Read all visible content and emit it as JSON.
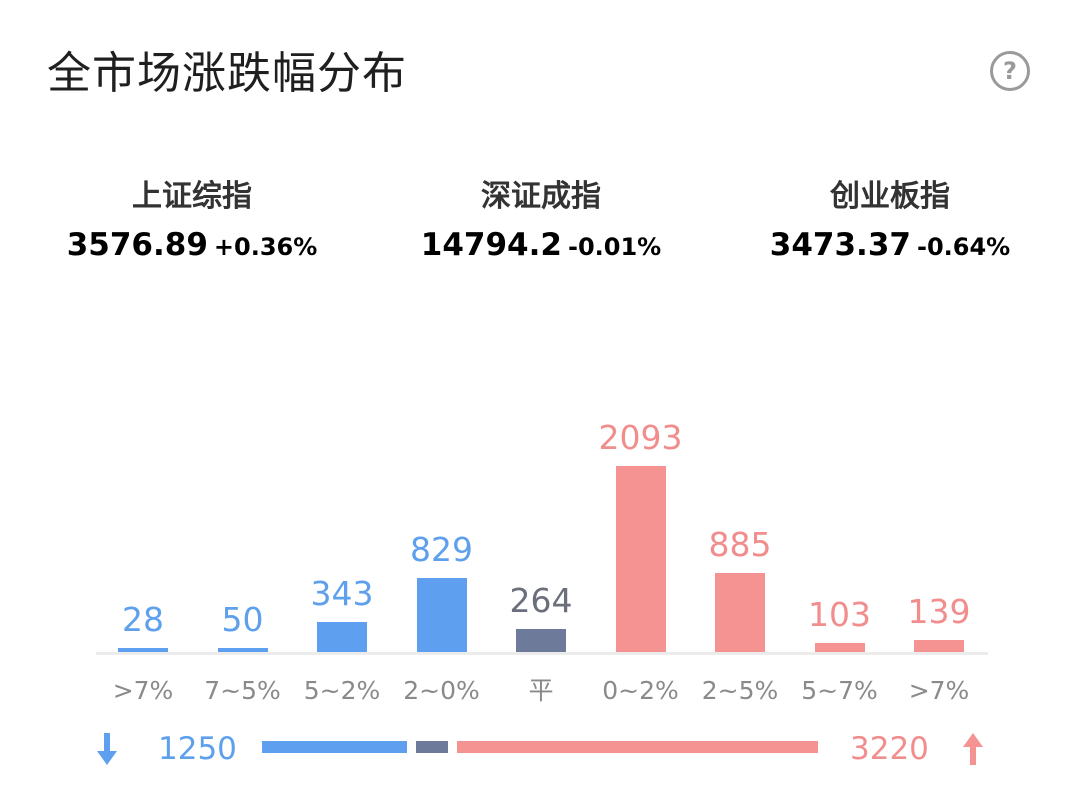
{
  "header": {
    "title": "全市场涨跌幅分布",
    "help_icon": "question-circle-icon",
    "help_glyph": "?"
  },
  "indices": [
    {
      "name": "上证综指",
      "price": "3576.89",
      "change": "+0.36%",
      "direction": "up"
    },
    {
      "name": "深证成指",
      "price": "14794.2",
      "change": "-0.01%",
      "direction": "down"
    },
    {
      "name": "创业板指",
      "price": "3473.37",
      "change": "-0.64%",
      "direction": "down"
    }
  ],
  "colors": {
    "up": "#f59393",
    "down": "#5f9ff0",
    "flat": "#6e7a99",
    "up_text": "#f28d8d",
    "down_text": "#5ea0ec",
    "flat_text": "#6b6f7c"
  },
  "chart_data": {
    "type": "bar",
    "categories": [
      ">7%",
      "7~5%",
      "5~2%",
      "2~0%",
      "平",
      "0~2%",
      "2~5%",
      "5~7%",
      ">7%"
    ],
    "values": [
      28,
      50,
      343,
      829,
      264,
      2093,
      885,
      103,
      139
    ],
    "kinds": [
      "down",
      "down",
      "down",
      "down",
      "flat",
      "up",
      "up",
      "up",
      "up"
    ],
    "ylim": [
      0,
      2093
    ]
  },
  "summary": {
    "down_total": "1250",
    "up_total": "3220",
    "down_icon": "arrow-down-icon",
    "up_icon": "arrow-up-icon",
    "bar_fractions": {
      "down": 0.2689,
      "flat": 0.0601,
      "up": 0.671
    }
  }
}
